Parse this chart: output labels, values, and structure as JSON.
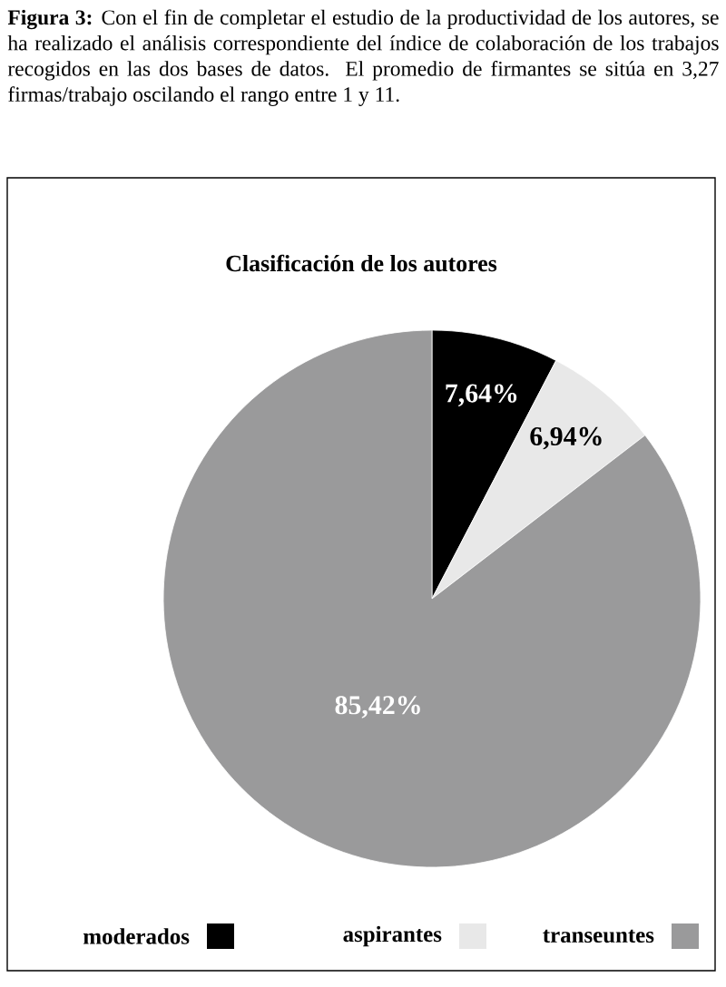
{
  "chart_data": {
    "type": "pie",
    "title": "Clasificación de los autores",
    "annotations": [
      "**Figura 3:** Con el fin de completar el estudio de la productividad de los autores, se ha realizado el análisis correspondiente del índice de colaboración de los trabajos recogidos en las dos bases de datos. El promedio de firmantes se sitúa en 3,27 firmas/trabajo oscilando el rango entre 1 y 11."
    ],
    "categories": [
      "moderados",
      "aspirantes",
      "transeuntes"
    ],
    "values": [
      7.64,
      6.94,
      85.42
    ],
    "value_labels": [
      "7,64%",
      "6,94%",
      "85,42%"
    ],
    "colors": [
      "#000000",
      "#e8e8e8",
      "#9a9a9b"
    ],
    "legend": "bottom"
  }
}
